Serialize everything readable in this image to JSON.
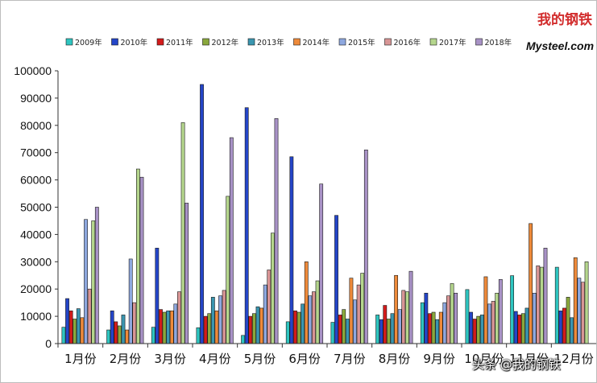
{
  "chart_data": {
    "type": "bar",
    "categories": [
      "1月份",
      "2月份",
      "3月份",
      "4月份",
      "5月份",
      "6月份",
      "7月份",
      "8月份",
      "9月份",
      "10月份",
      "11月份",
      "12月份"
    ],
    "ylim": [
      0,
      100000
    ],
    "yticks": [
      "0",
      "10000",
      "20000",
      "30000",
      "40000",
      "50000",
      "60000",
      "70000",
      "80000",
      "90000",
      "100000"
    ],
    "legend_position": "top",
    "grid": false,
    "series": [
      {
        "name": "2009年",
        "color": "#2ec5c0",
        "values": [
          6000,
          5000,
          6000,
          5800,
          3000,
          8000,
          7800,
          10500,
          15000,
          19800,
          24900,
          28000
        ]
      },
      {
        "name": "2010年",
        "color": "#2445c8",
        "values": [
          16500,
          12000,
          35000,
          95000,
          86500,
          68500,
          47000,
          8800,
          18500,
          11500,
          11800,
          12000
        ]
      },
      {
        "name": "2011年",
        "color": "#d31b1b",
        "values": [
          12000,
          8000,
          12500,
          10000,
          10000,
          12000,
          10500,
          14000,
          11000,
          9000,
          10500,
          13000
        ]
      },
      {
        "name": "2012年",
        "color": "#8aa83c",
        "values": [
          9000,
          6500,
          11500,
          11000,
          11000,
          11500,
          12500,
          9000,
          11500,
          10000,
          11000,
          17000
        ]
      },
      {
        "name": "2013年",
        "color": "#3a96b0",
        "values": [
          12800,
          10500,
          12000,
          17000,
          13500,
          14500,
          9000,
          11000,
          8800,
          10500,
          13000,
          9500
        ]
      },
      {
        "name": "2014年",
        "color": "#ee8a3a",
        "values": [
          9500,
          5000,
          12000,
          12000,
          13000,
          30000,
          24000,
          25000,
          11500,
          24500,
          44000,
          31500
        ]
      },
      {
        "name": "2015年",
        "color": "#8ea8df",
        "values": [
          45500,
          31000,
          14500,
          17500,
          21500,
          17500,
          16000,
          12500,
          15000,
          14500,
          18500,
          24000
        ]
      },
      {
        "name": "2016年",
        "color": "#d89595",
        "values": [
          20000,
          15000,
          19000,
          19500,
          27000,
          19000,
          21500,
          19500,
          17500,
          15500,
          28500,
          22500
        ]
      },
      {
        "name": "2017年",
        "color": "#b5d68d",
        "values": [
          45000,
          64000,
          81000,
          54000,
          40500,
          23000,
          25800,
          19000,
          22000,
          18500,
          28000,
          30000
        ]
      },
      {
        "name": "2018年",
        "color": "#a892c6",
        "values": [
          50000,
          61000,
          51500,
          75500,
          82500,
          58500,
          71000,
          26500,
          18500,
          23500,
          35000,
          null
        ]
      }
    ]
  },
  "logo": {
    "text_cn": "我的钢铁",
    "brand": "Mysteel.com"
  },
  "watermark": "头条 @我的钢铁"
}
